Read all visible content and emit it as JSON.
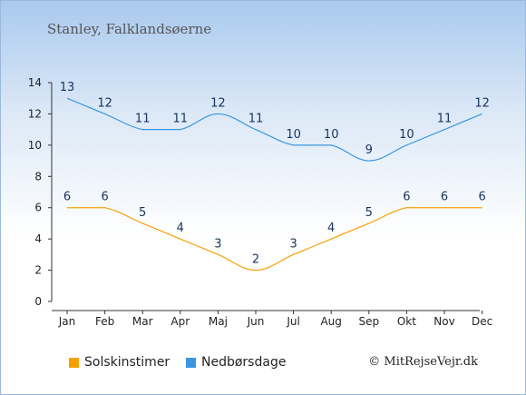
{
  "title": "Stanley, Falklandsøerne",
  "credit": "© MitRejseVejr.dk",
  "chart_data": {
    "type": "line",
    "categories": [
      "Jan",
      "Feb",
      "Mar",
      "Apr",
      "Maj",
      "Jun",
      "Jul",
      "Aug",
      "Sep",
      "Okt",
      "Nov",
      "Dec"
    ],
    "ylim": [
      0,
      14
    ],
    "yticks": [
      0,
      2,
      4,
      6,
      8,
      10,
      12,
      14
    ],
    "grid": false,
    "legend_position": "bottom-left",
    "series": [
      {
        "name": "Solskinstimer",
        "color": "#f5a000",
        "label_color": "#1a3560",
        "values": [
          6,
          6,
          5,
          4,
          3,
          2,
          3,
          4,
          5,
          6,
          6,
          6
        ]
      },
      {
        "name": "Nedbørsdage",
        "color": "#3a96e0",
        "label_color": "#1a3560",
        "values": [
          13,
          12,
          11,
          11,
          12,
          11,
          10,
          10,
          9,
          10,
          11,
          12
        ]
      }
    ]
  }
}
